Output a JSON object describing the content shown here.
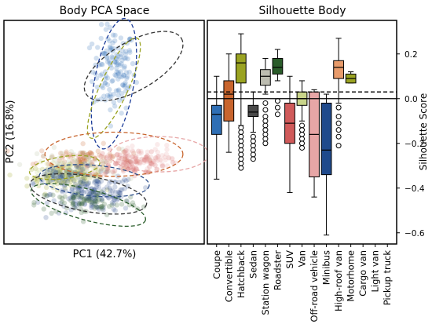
{
  "chart_data": [
    {
      "type": "scatter",
      "title": "Body PCA Space",
      "xlabel": "PC1 (42.7%)",
      "ylabel": "PC2 (16.8%)",
      "grid": false,
      "clusters": [
        {
          "category": "Coupe",
          "color": "#2f6fb5",
          "center": [
            0.55,
            0.78
          ],
          "spread": [
            0.09,
            0.16
          ],
          "points": 140
        },
        {
          "category": "Convertible",
          "color": "#c8652e",
          "center": [
            0.4,
            0.38
          ],
          "spread": [
            0.2,
            0.05
          ],
          "points": 90
        },
        {
          "category": "Hatchback",
          "color": "#9aa322",
          "center": [
            0.3,
            0.3
          ],
          "spread": [
            0.16,
            0.04
          ],
          "points": 110
        },
        {
          "category": "Sedan",
          "color": "#2d4f8c",
          "center": [
            0.45,
            0.22
          ],
          "spread": [
            0.18,
            0.07
          ],
          "points": 170
        },
        {
          "category": "Station wagon",
          "color": "#b8bfa0",
          "center": [
            0.35,
            0.35
          ],
          "spread": [
            0.2,
            0.06
          ],
          "points": 70
        },
        {
          "category": "Roadster",
          "color": "#2a5c2a",
          "center": [
            0.42,
            0.18
          ],
          "spread": [
            0.22,
            0.05
          ],
          "points": 80
        },
        {
          "category": "SUV",
          "color": "#d05a5a",
          "center": [
            0.62,
            0.36
          ],
          "spread": [
            0.16,
            0.05
          ],
          "points": 90
        },
        {
          "category": "Van",
          "color": "#c9d48a",
          "center": [
            0.3,
            0.32
          ],
          "spread": [
            0.12,
            0.04
          ],
          "points": 60
        },
        {
          "category": "Off-road vehicle",
          "color": "#e7a6a6",
          "center": [
            0.7,
            0.38
          ],
          "spread": [
            0.14,
            0.05
          ],
          "points": 70
        },
        {
          "category": "Minibus",
          "color": "#1f4a8c",
          "center": [
            0.3,
            0.3
          ],
          "spread": [
            0.12,
            0.04
          ],
          "points": 50
        }
      ],
      "ellipses": [
        {
          "color": "#333333",
          "cx": 0.65,
          "cy": 0.8,
          "rx": 0.28,
          "ry": 0.11,
          "angle": -30
        },
        {
          "color": "#1c3c99",
          "cx": 0.55,
          "cy": 0.72,
          "rx": 0.1,
          "ry": 0.3,
          "angle": 10
        },
        {
          "color": "#9aa322",
          "cx": 0.55,
          "cy": 0.7,
          "rx": 0.07,
          "ry": 0.25,
          "angle": 25
        },
        {
          "color": "#c8652e",
          "cx": 0.55,
          "cy": 0.4,
          "rx": 0.35,
          "ry": 0.1,
          "angle": 0
        },
        {
          "color": "#e7a6a6",
          "cx": 0.78,
          "cy": 0.4,
          "rx": 0.25,
          "ry": 0.08,
          "angle": 0
        },
        {
          "color": "#9aa322",
          "cx": 0.3,
          "cy": 0.34,
          "rx": 0.18,
          "ry": 0.05,
          "angle": -8
        },
        {
          "color": "#2d4f8c",
          "cx": 0.45,
          "cy": 0.28,
          "rx": 0.28,
          "ry": 0.07,
          "angle": 5
        },
        {
          "color": "#333333",
          "cx": 0.42,
          "cy": 0.22,
          "rx": 0.3,
          "ry": 0.08,
          "angle": 10
        },
        {
          "color": "#2a5c2a",
          "cx": 0.42,
          "cy": 0.17,
          "rx": 0.3,
          "ry": 0.07,
          "angle": 15
        }
      ]
    },
    {
      "type": "box",
      "title": "Silhouette Body",
      "ylabel": "Silhouette Score",
      "ylim": [
        -0.65,
        0.35
      ],
      "yticks": [
        0.2,
        0.0,
        -0.2,
        -0.4,
        -0.6
      ],
      "ytick_labels": [
        "0.2",
        "0.0",
        "−0.2",
        "−0.4",
        "−0.6"
      ],
      "reference_lines": [
        {
          "y": 0.0,
          "style": "solid"
        },
        {
          "y": 0.03,
          "style": "dashed"
        }
      ],
      "categories": [
        "Coupe",
        "Convertible",
        "Hatchback",
        "Sedan",
        "Station wagon",
        "Roadster",
        "SUV",
        "Van",
        "Off-road vehicle",
        "Minibus",
        "High-roof van",
        "Motorhome",
        "Cargo van",
        "Light van",
        "Pickup truck"
      ],
      "boxes": [
        {
          "category": "Coupe",
          "color": "#2f6fb5",
          "whislo": -0.36,
          "q1": -0.16,
          "med": -0.07,
          "q3": -0.03,
          "whishi": 0.1,
          "fliers": []
        },
        {
          "category": "Convertible",
          "color": "#c8652e",
          "whislo": -0.24,
          "q1": -0.1,
          "med": 0.02,
          "q3": 0.08,
          "whishi": 0.2,
          "fliers": []
        },
        {
          "category": "Hatchback",
          "color": "#9aa322",
          "whislo": -0.12,
          "q1": 0.07,
          "med": 0.16,
          "q3": 0.2,
          "whishi": 0.29,
          "fliers": [
            -0.13,
            -0.15,
            -0.17,
            -0.19,
            -0.21,
            -0.23,
            -0.25,
            -0.27,
            -0.29,
            -0.31
          ]
        },
        {
          "category": "Sedan",
          "color": "#4a4a4a",
          "whislo": -0.15,
          "q1": -0.08,
          "med": -0.06,
          "q3": -0.03,
          "whishi": 0.03,
          "fliers": [
            -0.17,
            -0.19,
            -0.21,
            -0.23,
            -0.25,
            -0.27
          ]
        },
        {
          "category": "Station wagon",
          "color": "#bcbcb0",
          "whislo": 0.02,
          "q1": 0.06,
          "med": 0.1,
          "q3": 0.13,
          "whishi": 0.18,
          "fliers": [
            -0.02,
            -0.05,
            -0.08,
            -0.1,
            -0.12,
            -0.14,
            -0.16,
            -0.18,
            -0.2
          ]
        },
        {
          "category": "Roadster",
          "color": "#2a5c2a",
          "whislo": 0.08,
          "q1": 0.11,
          "med": 0.14,
          "q3": 0.18,
          "whishi": 0.22,
          "fliers": [
            -0.01,
            -0.04,
            -0.07
          ]
        },
        {
          "category": "SUV",
          "color": "#d05a5a",
          "whislo": -0.42,
          "q1": -0.2,
          "med": -0.11,
          "q3": -0.02,
          "whishi": 0.1,
          "fliers": []
        },
        {
          "category": "Van",
          "color": "#c9d48a",
          "whislo": -0.1,
          "q1": -0.03,
          "med": 0.0,
          "q3": 0.03,
          "whishi": 0.08,
          "fliers": [
            -0.12,
            -0.14,
            -0.16,
            -0.18,
            -0.2,
            -0.22
          ]
        },
        {
          "category": "Off-road vehicle",
          "color": "#e7a6a6",
          "whislo": -0.44,
          "q1": -0.35,
          "med": -0.16,
          "q3": 0.03,
          "whishi": 0.04,
          "fliers": []
        },
        {
          "category": "Minibus",
          "color": "#1f4a8c",
          "whislo": -0.61,
          "q1": -0.34,
          "med": -0.23,
          "q3": -0.02,
          "whishi": 0.02,
          "fliers": []
        },
        {
          "category": "High-roof van",
          "color": "#e89b6b",
          "whislo": -0.02,
          "q1": 0.09,
          "med": 0.14,
          "q3": 0.17,
          "whishi": 0.27,
          "fliers": [
            -0.04,
            -0.08,
            -0.11,
            -0.14,
            -0.17,
            -0.21
          ]
        },
        {
          "category": "Motorhome",
          "color": "#9aa322",
          "whislo": 0.07,
          "q1": 0.07,
          "med": 0.09,
          "q3": 0.11,
          "whishi": 0.12,
          "fliers": []
        },
        {
          "category": "Cargo van",
          "color": "#888888",
          "whislo": null,
          "q1": null,
          "med": null,
          "q3": null,
          "whishi": null,
          "fliers": []
        },
        {
          "category": "Light van",
          "color": "#888888",
          "whislo": null,
          "q1": null,
          "med": null,
          "q3": null,
          "whishi": null,
          "fliers": []
        },
        {
          "category": "Pickup truck",
          "color": "#888888",
          "whislo": null,
          "q1": null,
          "med": null,
          "q3": null,
          "whishi": null,
          "fliers": []
        }
      ]
    }
  ]
}
